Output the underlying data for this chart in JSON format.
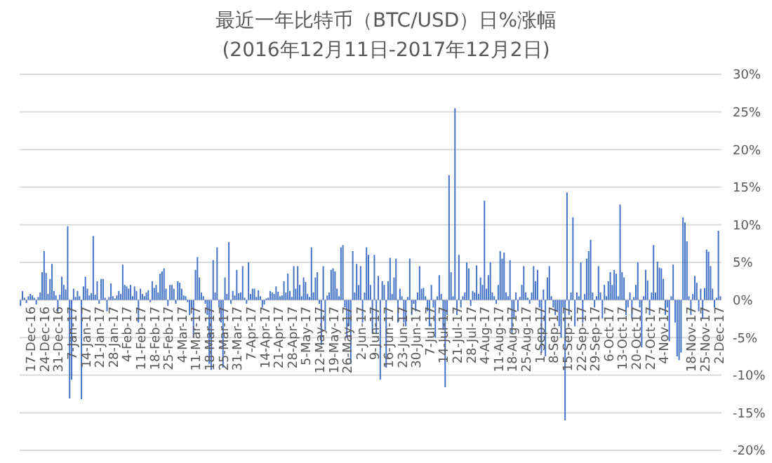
{
  "chart_data": {
    "type": "bar",
    "title": "最近一年比特币（BTC/USD）日%涨幅",
    "subtitle": "(2016年12月11日-2017年12月2日)",
    "categories": [
      null,
      null,
      null,
      null,
      null,
      null,
      "17-Dec-16",
      null,
      null,
      null,
      null,
      null,
      null,
      "24-Dec-16",
      null,
      null,
      null,
      null,
      null,
      null,
      "31-Dec-16",
      null,
      null,
      null,
      null,
      null,
      null,
      "7-Jan-17",
      null,
      null,
      null,
      null,
      null,
      null,
      "14-Jan-17",
      null,
      null,
      null,
      null,
      null,
      null,
      "21-Jan-17",
      null,
      null,
      null,
      null,
      null,
      null,
      "28-Jan-17",
      null,
      null,
      null,
      null,
      null,
      null,
      "4-Feb-17",
      null,
      null,
      null,
      null,
      null,
      null,
      "11-Feb-17",
      null,
      null,
      null,
      null,
      null,
      null,
      "18-Feb-17",
      null,
      null,
      null,
      null,
      null,
      null,
      "25-Feb-17",
      null,
      null,
      null,
      null,
      null,
      null,
      "4-Mar-17",
      null,
      null,
      null,
      null,
      null,
      null,
      "11-Mar-17",
      null,
      null,
      null,
      null,
      null,
      null,
      "18-Mar-17",
      null,
      null,
      null,
      null,
      null,
      null,
      "25-Mar-17",
      null,
      null,
      null,
      null,
      null,
      null,
      "31-Mar-17",
      null,
      null,
      null,
      null,
      null,
      null,
      "7-Apr-17",
      null,
      null,
      null,
      null,
      null,
      null,
      "14-Apr-17",
      null,
      null,
      null,
      null,
      null,
      null,
      "21-Apr-17",
      null,
      null,
      null,
      null,
      null,
      null,
      "28-Apr-17",
      null,
      null,
      null,
      null,
      null,
      null,
      "5-May-17",
      null,
      null,
      null,
      null,
      null,
      null,
      "12-May-17",
      null,
      null,
      null,
      null,
      null,
      null,
      "19-May-17",
      null,
      null,
      null,
      null,
      null,
      null,
      "26-May-17",
      null,
      null,
      null,
      null,
      null,
      null,
      "2-Jun-17",
      null,
      null,
      null,
      null,
      null,
      null,
      "9-Jun-17",
      null,
      null,
      null,
      null,
      null,
      null,
      "16-Jun-17",
      null,
      null,
      null,
      null,
      null,
      null,
      "23-Jun-17",
      null,
      null,
      null,
      null,
      null,
      null,
      "30-Jun-17",
      null,
      null,
      null,
      null,
      null,
      null,
      "7-Jul-17",
      null,
      null,
      null,
      null,
      null,
      null,
      "14-Jul-17",
      null,
      null,
      null,
      null,
      null,
      null,
      "21-Jul-17",
      null,
      null,
      null,
      null,
      null,
      null,
      "28-Jul-17",
      null,
      null,
      null,
      null,
      null,
      null,
      "4-Aug-17",
      null,
      null,
      null,
      null,
      null,
      null,
      "11-Aug-17",
      null,
      null,
      null,
      null,
      null,
      null,
      "18-Aug-17",
      null,
      null,
      null,
      null,
      null,
      null,
      "25-Aug-17",
      null,
      null,
      null,
      null,
      null,
      null,
      "1-Sep-17",
      null,
      null,
      null,
      null,
      null,
      null,
      "8-Sep-17",
      null,
      null,
      null,
      null,
      null,
      null,
      "15-Sep-17",
      null,
      null,
      null,
      null,
      null,
      null,
      "22-Sep-17",
      null,
      null,
      null,
      null,
      null,
      null,
      "29-Sep-17",
      null,
      null,
      null,
      null,
      null,
      null,
      "6-Oct-17",
      null,
      null,
      null,
      null,
      null,
      null,
      "13-Oct-17",
      null,
      null,
      null,
      null,
      null,
      null,
      "20-Oct-17",
      null,
      null,
      null,
      null,
      null,
      null,
      "27-Oct-17",
      null,
      null,
      null,
      null,
      null,
      null,
      "4-Nov-17",
      null,
      null,
      null,
      null,
      null,
      null,
      null,
      null,
      null,
      null,
      null,
      null,
      null,
      "18-Nov-17",
      null,
      null,
      null,
      null,
      null,
      null,
      "25-Nov-17",
      null,
      null,
      null,
      null,
      null,
      null,
      "2-Dec-17"
    ],
    "values": [
      -0.8,
      1.2,
      0.3,
      -0.4,
      0.5,
      0.8,
      0.6,
      0.3,
      -0.6,
      0.4,
      1.0,
      3.7,
      6.5,
      3.6,
      0.8,
      2.8,
      4.8,
      1.2,
      0.6,
      -1.5,
      0.7,
      3.1,
      2.0,
      1.4,
      9.8,
      -13.1,
      -10.6,
      1.5,
      0.4,
      1.2,
      0.5,
      -13.2,
      1.8,
      3.1,
      1.5,
      0.6,
      0.9,
      8.5,
      0.7,
      2.5,
      -0.5,
      2.8,
      2.8,
      0.3,
      -1.5,
      0.4,
      2.2,
      0.5,
      0.2,
      0.6,
      1.2,
      0.8,
      4.7,
      2.0,
      1.8,
      1.5,
      2.0,
      0.5,
      1.8,
      1.2,
      -3.0,
      1.5,
      0.8,
      0.5,
      1.0,
      1.3,
      -0.3,
      2.5,
      1.6,
      2.0,
      1.0,
      3.5,
      3.8,
      4.2,
      1.5,
      -0.8,
      2.0,
      2.0,
      1.5,
      -0.5,
      2.5,
      2.3,
      1.5,
      0.6,
      0.5,
      -0.3,
      -2.0,
      -1.0,
      -5.0,
      4.0,
      5.7,
      3.0,
      1.0,
      0.5,
      -0.5,
      -2.0,
      -8.5,
      -9.3,
      5.3,
      1.0,
      7.0,
      -1.0,
      -3.0,
      -9.0,
      3.0,
      0.8,
      7.7,
      -0.5,
      1.2,
      0.6,
      4.0,
      0.9,
      1.0,
      4.5,
      0.3,
      -0.5,
      5.0,
      0.8,
      1.5,
      1.5,
      0.4,
      1.3,
      0.5,
      -1.0,
      -0.6,
      0.2,
      0.3,
      1.2,
      1.0,
      0.8,
      1.8,
      1.1,
      0.5,
      0.6,
      2.5,
      1.0,
      3.5,
      1.2,
      0.4,
      4.5,
      1.5,
      4.5,
      2.0,
      0.5,
      3.0,
      2.4,
      0.8,
      0.4,
      7.0,
      1.0,
      3.0,
      3.7,
      -0.5,
      -6.0,
      4.5,
      -4.0,
      0.6,
      1.0,
      4.0,
      4.2,
      3.8,
      1.5,
      0.5,
      7.0,
      7.3,
      -1.0,
      -5.0,
      -3.5,
      -8.5,
      6.5,
      1.0,
      4.8,
      2.0,
      4.5,
      -3.0,
      1.0,
      7.0,
      6.0,
      2.0,
      -4.5,
      6.0,
      -4.5,
      3.2,
      -10.6,
      2.5,
      2.0,
      -9.0,
      2.5,
      5.6,
      0.8,
      3.0,
      5.5,
      -3.0,
      1.5,
      0.5,
      -3.0,
      -3.5,
      0.4,
      5.5,
      -2.0,
      -0.5,
      -1.5,
      1.0,
      4.5,
      1.5,
      1.6,
      0.5,
      -1.5,
      -3.5,
      2.0,
      -1.0,
      -5.0,
      0.5,
      3.3,
      0.8,
      -4.0,
      -11.6,
      -2.0,
      16.6,
      3.7,
      0.5,
      25.5,
      -2.0,
      6.0,
      -1.0,
      0.5,
      1.0,
      5.0,
      4.2,
      -0.8,
      1.2,
      1.0,
      4.6,
      0.8,
      3.0,
      2.0,
      13.2,
      1.5,
      3.3,
      5.0,
      1.0,
      0.5,
      -0.5,
      2.0,
      6.5,
      5.5,
      6.3,
      1.0,
      0.5,
      5.3,
      -4.5,
      -2.5,
      1.0,
      -1.5,
      0.4,
      2.0,
      4.5,
      1.0,
      0.3,
      -0.5,
      1.0,
      4.5,
      2.5,
      4.0,
      -1.0,
      -7.0,
      1.4,
      -7.5,
      3.0,
      4.5,
      0.5,
      -1.0,
      -2.0,
      -1.5,
      -3.5,
      -5.0,
      -1.0,
      -16.0,
      14.3,
      -2.0,
      1.0,
      11.0,
      -3.5,
      1.0,
      0.5,
      5.0,
      -3.0,
      0.8,
      5.5,
      6.5,
      8.0,
      1.0,
      -1.0,
      0.5,
      4.5,
      1.0,
      -2.5,
      2.0,
      0.5,
      2.5,
      3.7,
      2.0,
      4.0,
      3.5,
      0.5,
      12.7,
      3.7,
      3.0,
      -2.0,
      -1.0,
      1.0,
      -2.5,
      0.4,
      2.0,
      5.0,
      -1.0,
      -6.3,
      0.5,
      4.0,
      2.6,
      -2.0,
      1.0,
      7.3,
      1.0,
      5.1,
      4.3,
      4.2,
      2.8,
      -2.0,
      -1.0,
      -5.5,
      0.5,
      4.7,
      -3.0,
      -7.5,
      -8.0,
      -7.0,
      11.0,
      10.3,
      7.8,
      0.5,
      -2.0,
      0.8,
      3.2,
      2.3,
      -1.5,
      1.5,
      -2.5,
      1.6,
      6.7,
      6.4,
      4.5,
      1.5,
      -1.0,
      0.3,
      9.2,
      0.5
    ],
    "color": "#4472c4",
    "ylim": [
      -20,
      30
    ],
    "yticks": [
      {
        "value": -20,
        "label": "-20%"
      },
      {
        "value": -15,
        "label": "-15%"
      },
      {
        "value": -10,
        "label": "-10%"
      },
      {
        "value": -5,
        "label": "-5%"
      },
      {
        "value": 0,
        "label": "0%"
      },
      {
        "value": 5,
        "label": "5%"
      },
      {
        "value": 10,
        "label": "10%"
      },
      {
        "value": 15,
        "label": "15%"
      },
      {
        "value": 20,
        "label": "20%"
      },
      {
        "value": 25,
        "label": "25%"
      },
      {
        "value": 30,
        "label": "30%"
      }
    ],
    "grid": "y"
  }
}
